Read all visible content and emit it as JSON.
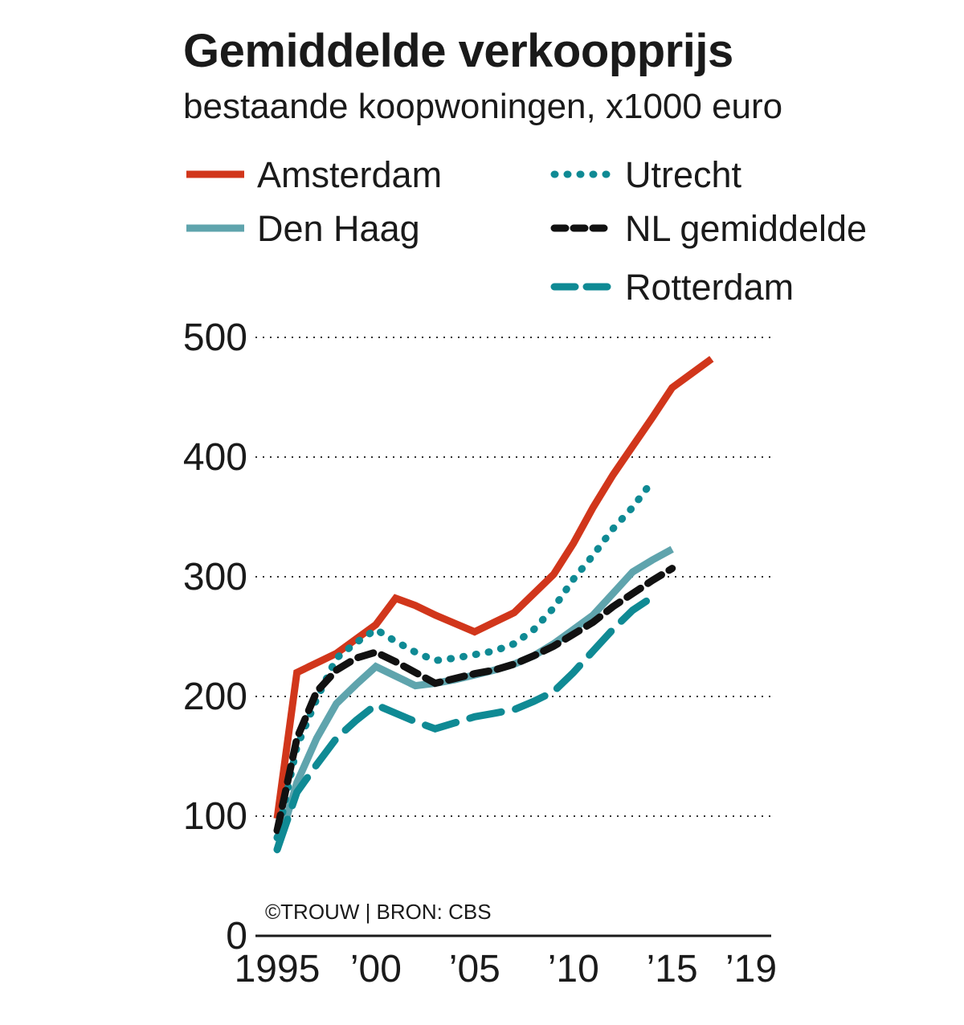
{
  "chart_data": {
    "type": "line",
    "title": "Gemiddelde verkoopprijs",
    "subtitle": "bestaande koopwoningen,  x1000 euro",
    "xlabel": "",
    "ylabel": "",
    "x": [
      1995,
      1996,
      1997,
      1998,
      1999,
      2000,
      2001,
      2002,
      2003,
      2004,
      2005,
      2006,
      2007,
      2008,
      2009,
      2010,
      2011,
      2012,
      2013,
      2014,
      2015,
      2016,
      2017,
      2018,
      2019
    ],
    "xlim": [
      1995,
      2019
    ],
    "ylim": [
      0,
      500
    ],
    "yticks": [
      0,
      100,
      200,
      300,
      400,
      500
    ],
    "ytick_labels": [
      "0",
      "100",
      "200",
      "300",
      "400",
      "500"
    ],
    "xticks": [
      1995,
      2000,
      2005,
      2010,
      2015,
      2019
    ],
    "xtick_labels": [
      "1995",
      "’00",
      "’05",
      "’10",
      "’15",
      "’19"
    ],
    "grid": "horizontal dotted",
    "series": [
      {
        "name": "Amsterdam",
        "color": "#d1361b",
        "dash": "solid",
        "values": [
          98,
          220,
          228,
          236,
          248,
          260,
          282,
          276,
          268,
          261,
          254,
          262,
          270,
          286,
          302,
          328,
          358,
          385,
          409,
          433,
          458,
          470,
          482,
          null,
          null
        ]
      },
      {
        "name": "Den Haag",
        "color": "#5fa4ad",
        "dash": "solid",
        "values": [
          72,
          128,
          165,
          194,
          210,
          225,
          217,
          209,
          211,
          214,
          218,
          222,
          227,
          234,
          244,
          256,
          268,
          286,
          304,
          314,
          323,
          null,
          null,
          null,
          null
        ]
      },
      {
        "name": "Utrecht",
        "color": "#0f8a94",
        "dash": "dotted",
        "values": [
          82,
          158,
          198,
          232,
          245,
          256,
          246,
          237,
          230,
          232,
          235,
          238,
          244,
          256,
          274,
          298,
          318,
          340,
          358,
          380,
          null,
          null,
          null,
          null,
          null
        ]
      },
      {
        "name": "NL gemiddelde",
        "color": "#111111",
        "dash": "dashed",
        "values": [
          88,
          165,
          204,
          222,
          232,
          237,
          229,
          220,
          211,
          215,
          219,
          222,
          227,
          234,
          242,
          252,
          262,
          275,
          286,
          297,
          307,
          null,
          null,
          null,
          null
        ]
      },
      {
        "name": "Rotterdam",
        "color": "#0f8a94",
        "dash": "longdash",
        "values": [
          72,
          120,
          143,
          165,
          180,
          193,
          186,
          179,
          173,
          178,
          183,
          186,
          189,
          196,
          204,
          220,
          238,
          256,
          272,
          283,
          null,
          null,
          null,
          null,
          null
        ]
      }
    ],
    "legend_position": "top",
    "credit": "©TROUW | BRON: CBS"
  }
}
